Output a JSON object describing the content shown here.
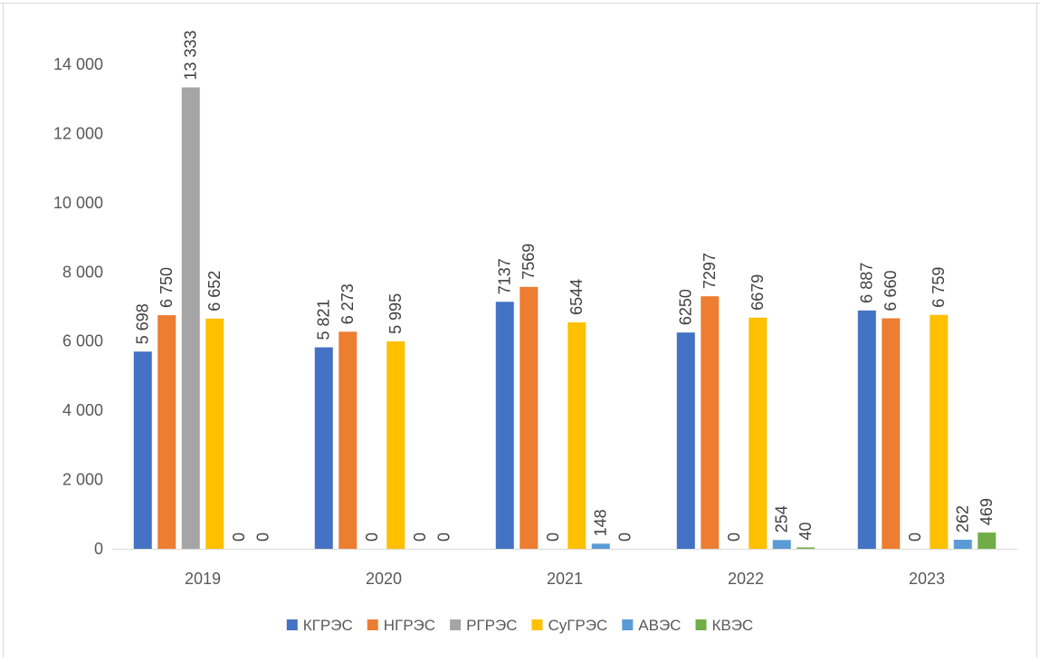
{
  "chart_data": {
    "type": "bar",
    "categories": [
      "2019",
      "2020",
      "2021",
      "2022",
      "2023"
    ],
    "ylim": [
      0,
      14000
    ],
    "yticks": [
      0,
      2000,
      4000,
      6000,
      8000,
      10000,
      12000,
      14000
    ],
    "ytick_labels": [
      "0",
      "2 000",
      "4 000",
      "6 000",
      "8 000",
      "10 000",
      "12 000",
      "14 000"
    ],
    "grid": false,
    "legend_position": "bottom",
    "series": [
      {
        "name": "КГРЭС",
        "color": "#4472C4",
        "values": [
          5698,
          5821,
          7137,
          6250,
          6887
        ],
        "labels": [
          "5 698",
          "5 821",
          "7137",
          "6250",
          "6 887"
        ]
      },
      {
        "name": "НГРЭС",
        "color": "#ED7D31",
        "values": [
          6750,
          6273,
          7569,
          7297,
          6660
        ],
        "labels": [
          "6 750",
          "6 273",
          "7569",
          "7297",
          "6 660"
        ]
      },
      {
        "name": "РГРЭС",
        "color": "#A5A5A5",
        "values": [
          13333,
          0,
          0,
          0,
          0
        ],
        "labels": [
          "13 333",
          "0",
          "0",
          "0",
          "0"
        ]
      },
      {
        "name": "СуГРЭС",
        "color": "#FFC000",
        "values": [
          6652,
          5995,
          6544,
          6679,
          6759
        ],
        "labels": [
          "6 652",
          "5 995",
          "6544",
          "6679",
          "6 759"
        ]
      },
      {
        "name": "АВЭС",
        "color": "#5B9BD5",
        "values": [
          0,
          0,
          148,
          254,
          262
        ],
        "labels": [
          "0",
          "0",
          "148",
          "254",
          "262"
        ]
      },
      {
        "name": "КВЭС",
        "color": "#70AD47",
        "values": [
          0,
          0,
          0,
          40,
          469
        ],
        "labels": [
          "0",
          "0",
          "0",
          "40",
          "469"
        ]
      }
    ]
  }
}
